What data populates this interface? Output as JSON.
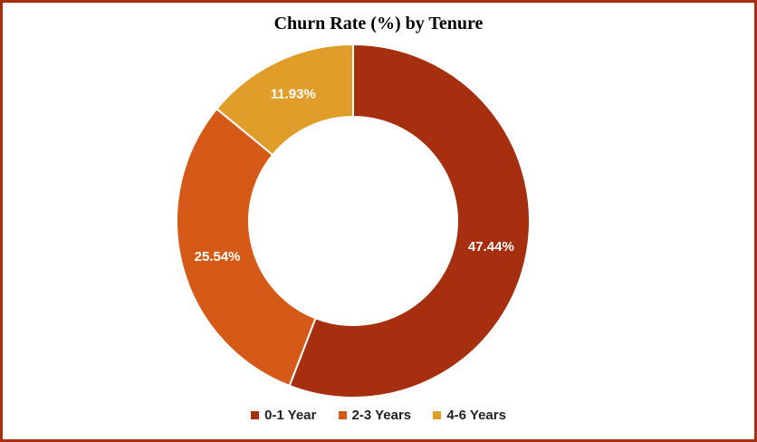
{
  "chart_data": {
    "type": "pie",
    "variant": "donut",
    "title": "Churn Rate (%) by Tenure",
    "categories": [
      "0-1 Year",
      "2-3 Years",
      "4-6 Years"
    ],
    "values": [
      47.44,
      25.54,
      11.93
    ],
    "labels": [
      "47.44%",
      "25.54%",
      "11.93%"
    ],
    "colors": [
      "#a52f0e",
      "#d55a18",
      "#e19d2a"
    ],
    "legend_position": "bottom"
  }
}
